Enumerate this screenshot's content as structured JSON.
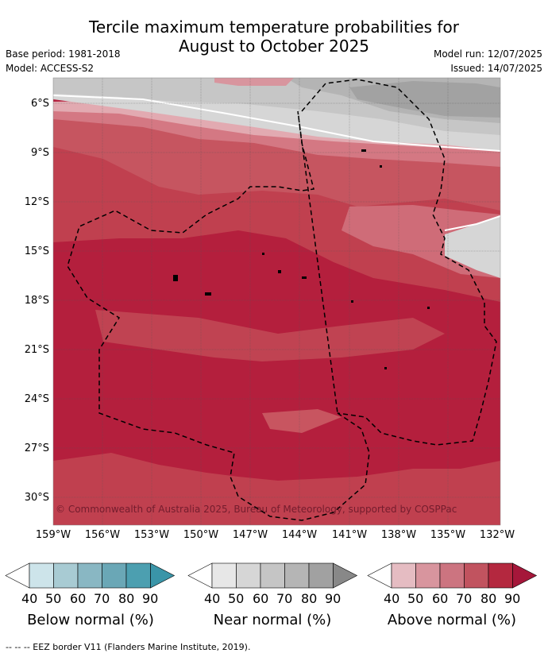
{
  "title_line1": "Tercile maximum temperature probabilities for",
  "title_line2": "August to October 2025",
  "meta": {
    "base_period": "Base period: 1981-2018",
    "model": "Model: ACCESS-S2",
    "model_run": "Model run: 12/07/2025",
    "issued": "Issued: 14/07/2025"
  },
  "lat_labels": [
    "6°S",
    "9°S",
    "12°S",
    "15°S",
    "18°S",
    "21°S",
    "24°S",
    "27°S",
    "30°S"
  ],
  "lon_labels": [
    "159°W",
    "156°W",
    "153°W",
    "150°W",
    "147°W",
    "144°W",
    "141°W",
    "138°W",
    "135°W",
    "132°W"
  ],
  "copyright": "© Commonwealth of Australia 2025, Bureau of Meteorology, supported by COSPPac",
  "legend": {
    "below": {
      "title": "Below normal (%)",
      "ticks": [
        "40",
        "50",
        "60",
        "70",
        "80",
        "90"
      ],
      "colors": [
        "#ffffff",
        "#cde4ea",
        "#a8cbd3",
        "#89b7c3",
        "#6aa7b6",
        "#4c9fb0",
        "#3a95a8"
      ]
    },
    "near": {
      "title": "Near normal (%)",
      "ticks": [
        "40",
        "50",
        "60",
        "70",
        "80",
        "90"
      ],
      "colors": [
        "#ffffff",
        "#e7e7e7",
        "#d6d6d6",
        "#c5c5c5",
        "#b5b5b5",
        "#a1a1a1",
        "#888888"
      ]
    },
    "above": {
      "title": "Above normal (%)",
      "ticks": [
        "40",
        "50",
        "60",
        "70",
        "80",
        "90"
      ],
      "colors": [
        "#ffffff",
        "#e5bcc2",
        "#d8959e",
        "#cc7480",
        "#c1535f",
        "#b4283f",
        "#a5173a"
      ]
    }
  },
  "footnote": "--  --  -- EEZ border V11 (Flanders Marine Institute, 2019)."
}
